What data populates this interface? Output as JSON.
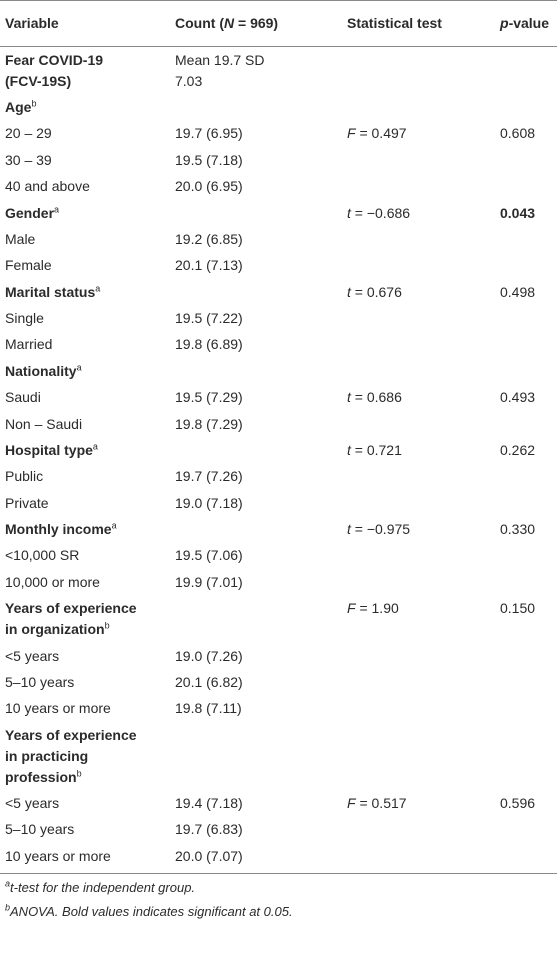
{
  "table": {
    "header": [
      [
        {
          "text": "Variable"
        }
      ],
      [
        {
          "text": "Count ("
        },
        {
          "text": "N",
          "italic": true
        },
        {
          "text": " = 969)"
        }
      ],
      [
        {
          "text": "Statistical test"
        }
      ],
      [
        {
          "text": "p",
          "italic": true
        },
        {
          "text": "-value"
        }
      ]
    ],
    "rows": [
      {
        "variable": "Fear COVID-19 (FCV-19S)",
        "bold": true,
        "count": "Mean 19.7 SD 7.03"
      },
      {
        "variable": "Age",
        "sup": "b",
        "bold": true
      },
      {
        "variable": "20 – 29",
        "count": "19.7 (6.95)",
        "test": {
          "symbol": "F",
          "text": "= 0.497"
        },
        "p": "0.608"
      },
      {
        "variable": "30 – 39",
        "count": "19.5 (7.18)"
      },
      {
        "variable": "40 and above",
        "count": "20.0 (6.95)"
      },
      {
        "variable": "Gender",
        "sup": "a",
        "bold": true,
        "test": {
          "symbol": "t",
          "text": "= −0.686"
        },
        "p": "0.043",
        "p_bold": true
      },
      {
        "variable": "Male",
        "count": "19.2 (6.85)"
      },
      {
        "variable": "Female",
        "count": "20.1 (7.13)"
      },
      {
        "variable": "Marital status",
        "sup": "a",
        "bold": true,
        "test": {
          "symbol": "t",
          "text": "= 0.676"
        },
        "p": "0.498"
      },
      {
        "variable": "Single",
        "count": "19.5 (7.22)"
      },
      {
        "variable": "Married",
        "count": "19.8 (6.89)"
      },
      {
        "variable": "Nationality",
        "sup": "a",
        "bold": true
      },
      {
        "variable": "Saudi",
        "count": "19.5 (7.29)",
        "test": {
          "symbol": "t",
          "text": "= 0.686"
        },
        "p": "0.493"
      },
      {
        "variable": "Non – Saudi",
        "count": "19.8 (7.29)"
      },
      {
        "variable": "Hospital type",
        "sup": "a",
        "bold": true,
        "test": {
          "symbol": "t",
          "text": "= 0.721"
        },
        "p": "0.262"
      },
      {
        "variable": "Public",
        "count": "19.7 (7.26)"
      },
      {
        "variable": "Private",
        "count": "19.0 (7.18)"
      },
      {
        "variable": "Monthly income",
        "sup": "a",
        "bold": true,
        "test": {
          "symbol": "t",
          "text": "= −0.975"
        },
        "p": "0.330"
      },
      {
        "variable": "<10,000 SR",
        "count": "19.5 (7.06)"
      },
      {
        "variable": "10,000 or more",
        "count": "19.9 (7.01)"
      },
      {
        "variable": "Years of experience in organization",
        "sup": "b",
        "bold": true,
        "test": {
          "symbol": "F",
          "text": "= 1.90"
        },
        "p": "0.150"
      },
      {
        "variable": "<5 years",
        "count": "19.0 (7.26)"
      },
      {
        "variable": "5–10 years",
        "count": "20.1 (6.82)"
      },
      {
        "variable": "10 years or more",
        "count": "19.8 (7.11)"
      },
      {
        "variable": "Years of experience in practicing profession",
        "sup": "b",
        "bold": true
      },
      {
        "variable": "<5 years",
        "count": "19.4 (7.18)",
        "test": {
          "symbol": "F",
          "text": "= 0.517"
        },
        "p": "0.596"
      },
      {
        "variable": "5–10 years",
        "count": "19.7 (6.83)"
      },
      {
        "variable": "10 years or more",
        "count": "20.0 (7.07)"
      }
    ],
    "footnotes": [
      {
        "sup": "a",
        "text": "t-test for the independent group."
      },
      {
        "sup": "b",
        "text": "ANOVA. Bold values indicates significant at 0.05."
      }
    ]
  }
}
